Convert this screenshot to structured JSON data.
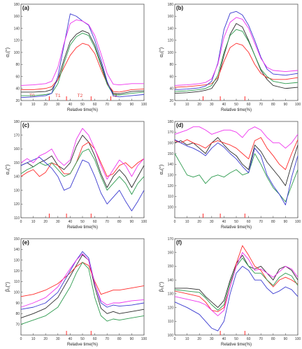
{
  "colors": {
    "black": "#2b2b2b",
    "red": "#ff2a2a",
    "green": "#2e9b4f",
    "blue": "#3a3ad0",
    "magenta": "#ee33ee",
    "axis": "#555555",
    "marker": "#ff2a2a"
  },
  "chart_data": [
    {
      "panel": "(a)",
      "type": "line",
      "xlabel": "Relative time(%)",
      "ylabel": "α₁(°)",
      "xlim": [
        0,
        100
      ],
      "ylim": [
        20,
        180
      ],
      "xticks": [
        0,
        10,
        20,
        30,
        40,
        50,
        60,
        70,
        80,
        90,
        100
      ],
      "yticks": [
        20,
        40,
        60,
        80,
        100,
        120,
        140,
        160,
        180
      ],
      "markers": [
        23,
        37,
        57,
        73
      ],
      "annotations": [
        {
          "text": "T0",
          "x": 9,
          "y": 28
        },
        {
          "text": "T1",
          "x": 30,
          "y": 28
        },
        {
          "text": "T2",
          "x": 48,
          "y": 28
        },
        {
          "text": "T3",
          "x": 76,
          "y": 28
        }
      ],
      "x": [
        0,
        10,
        20,
        25,
        30,
        35,
        40,
        45,
        50,
        55,
        60,
        65,
        70,
        75,
        80,
        90,
        100
      ],
      "series": [
        {
          "color": "black",
          "values": [
            34,
            34,
            35,
            38,
            55,
            88,
            118,
            130,
            136,
            132,
            112,
            82,
            50,
            32,
            31,
            35,
            36
          ]
        },
        {
          "color": "red",
          "values": [
            38,
            38,
            40,
            43,
            55,
            75,
            95,
            108,
            115,
            112,
            98,
            72,
            48,
            35,
            34,
            38,
            39
          ]
        },
        {
          "color": "green",
          "values": [
            28,
            28,
            30,
            32,
            48,
            82,
            112,
            126,
            132,
            128,
            108,
            78,
            47,
            30,
            29,
            32,
            34
          ]
        },
        {
          "color": "blue",
          "values": [
            25,
            26,
            28,
            32,
            60,
            112,
            164,
            160,
            152,
            145,
            120,
            88,
            52,
            28,
            26,
            28,
            30
          ]
        },
        {
          "color": "magenta",
          "values": [
            45,
            46,
            48,
            52,
            75,
            115,
            148,
            154,
            152,
            146,
            128,
            98,
            65,
            47,
            46,
            48,
            48
          ]
        }
      ]
    },
    {
      "panel": "(b)",
      "type": "line",
      "xlabel": "Relative time(%)",
      "ylabel": "α₂(°)",
      "xlim": [
        0,
        100
      ],
      "ylim": [
        20,
        180
      ],
      "xticks": [
        0,
        10,
        20,
        30,
        40,
        50,
        60,
        70,
        80,
        90,
        100
      ],
      "yticks": [
        20,
        40,
        60,
        80,
        100,
        120,
        140,
        160,
        180
      ],
      "markers": [
        23,
        37,
        57
      ],
      "annotations": [],
      "x": [
        0,
        10,
        20,
        25,
        30,
        35,
        40,
        45,
        50,
        55,
        60,
        65,
        70,
        75,
        80,
        90,
        100
      ],
      "series": [
        {
          "color": "black",
          "values": [
            32,
            33,
            35,
            37,
            40,
            55,
            95,
            130,
            148,
            142,
            120,
            95,
            70,
            55,
            45,
            40,
            42
          ]
        },
        {
          "color": "red",
          "values": [
            42,
            43,
            45,
            46,
            48,
            58,
            85,
            108,
            115,
            112,
            100,
            80,
            65,
            58,
            55,
            55,
            58
          ]
        },
        {
          "color": "green",
          "values": [
            35,
            36,
            38,
            40,
            45,
            62,
            100,
            128,
            138,
            135,
            118,
            95,
            72,
            60,
            52,
            48,
            50
          ]
        },
        {
          "color": "blue",
          "values": [
            38,
            39,
            41,
            44,
            52,
            82,
            138,
            165,
            168,
            162,
            145,
            120,
            92,
            72,
            64,
            62,
            65
          ]
        },
        {
          "color": "magenta",
          "values": [
            45,
            46,
            48,
            50,
            56,
            80,
            125,
            150,
            158,
            155,
            140,
            115,
            90,
            75,
            70,
            68,
            70
          ]
        }
      ]
    },
    {
      "panel": "(c)",
      "type": "line",
      "xlabel": "Relative time(%)",
      "ylabel": "α₃(°)",
      "xlim": [
        0,
        100
      ],
      "ylim": [
        110,
        180
      ],
      "xticks": [
        0,
        10,
        20,
        30,
        40,
        50,
        60,
        70,
        80,
        90,
        100
      ],
      "yticks": [
        110,
        120,
        130,
        140,
        150,
        160,
        170,
        180
      ],
      "markers": [
        23,
        37,
        57
      ],
      "annotations": [],
      "x": [
        0,
        5,
        10,
        15,
        20,
        25,
        30,
        35,
        40,
        45,
        50,
        55,
        60,
        65,
        70,
        75,
        80,
        85,
        90,
        95,
        100
      ],
      "series": [
        {
          "color": "black",
          "values": [
            148,
            150,
            147,
            150,
            152,
            155,
            148,
            145,
            150,
            162,
            170,
            165,
            155,
            142,
            132,
            140,
            145,
            140,
            132,
            140,
            148
          ]
        },
        {
          "color": "red",
          "values": [
            140,
            143,
            145,
            140,
            143,
            150,
            148,
            142,
            142,
            150,
            162,
            165,
            160,
            150,
            140,
            142,
            148,
            150,
            146,
            150,
            153
          ]
        },
        {
          "color": "green",
          "values": [
            142,
            145,
            147,
            150,
            148,
            150,
            145,
            140,
            142,
            150,
            158,
            160,
            152,
            140,
            130,
            135,
            140,
            135,
            127,
            135,
            140
          ]
        },
        {
          "color": "blue",
          "values": [
            148,
            150,
            152,
            154,
            150,
            146,
            140,
            130,
            132,
            142,
            152,
            150,
            140,
            128,
            120,
            125,
            130,
            122,
            115,
            122,
            130
          ]
        },
        {
          "color": "magenta",
          "values": [
            150,
            153,
            150,
            155,
            157,
            160,
            152,
            148,
            152,
            167,
            175,
            170,
            160,
            148,
            138,
            145,
            152,
            148,
            140,
            148,
            153
          ]
        }
      ]
    },
    {
      "panel": "(d)",
      "type": "line",
      "xlabel": "Relative time(%)",
      "ylabel": "α₄(°)",
      "xlim": [
        0,
        100
      ],
      "ylim": [
        90,
        180
      ],
      "xticks": [
        0,
        10,
        20,
        30,
        40,
        50,
        60,
        70,
        80,
        90,
        100
      ],
      "yticks": [
        100,
        110,
        120,
        130,
        140,
        150,
        160,
        170,
        180
      ],
      "markers": [
        23,
        37,
        57
      ],
      "annotations": [],
      "x": [
        0,
        5,
        10,
        15,
        20,
        25,
        30,
        35,
        40,
        45,
        50,
        55,
        60,
        65,
        70,
        75,
        80,
        85,
        90,
        95,
        100
      ],
      "series": [
        {
          "color": "black",
          "values": [
            160,
            162,
            158,
            160,
            155,
            150,
            160,
            165,
            158,
            152,
            148,
            140,
            135,
            158,
            152,
            142,
            135,
            128,
            120,
            140,
            158
          ]
        },
        {
          "color": "red",
          "values": [
            162,
            160,
            163,
            160,
            158,
            155,
            160,
            162,
            160,
            158,
            155,
            150,
            145,
            162,
            165,
            155,
            148,
            140,
            135,
            150,
            163
          ]
        },
        {
          "color": "green",
          "values": [
            150,
            140,
            130,
            128,
            130,
            122,
            128,
            130,
            128,
            132,
            135,
            130,
            132,
            150,
            140,
            128,
            118,
            112,
            105,
            120,
            135
          ]
        },
        {
          "color": "blue",
          "values": [
            163,
            160,
            157,
            155,
            152,
            148,
            155,
            160,
            156,
            150,
            145,
            138,
            132,
            155,
            148,
            130,
            120,
            112,
            102,
            128,
            148
          ]
        },
        {
          "color": "magenta",
          "values": [
            168,
            170,
            172,
            175,
            175,
            172,
            168,
            170,
            172,
            172,
            170,
            165,
            172,
            175,
            172,
            165,
            160,
            160,
            155,
            160,
            168
          ]
        }
      ]
    },
    {
      "panel": "(e)",
      "type": "line",
      "xlabel": "Relative time(%)",
      "ylabel": "β₁(°)",
      "xlim": [
        0,
        100
      ],
      "ylim": [
        60,
        150
      ],
      "xticks": [
        0,
        10,
        20,
        30,
        40,
        50,
        60,
        70,
        80,
        90,
        100
      ],
      "yticks": [
        70,
        80,
        90,
        100,
        110,
        120,
        130,
        140,
        150
      ],
      "markers": [
        37,
        57
      ],
      "annotations": [],
      "x": [
        0,
        10,
        20,
        30,
        40,
        45,
        50,
        55,
        60,
        65,
        70,
        75,
        80,
        90,
        100
      ],
      "series": [
        {
          "color": "black",
          "values": [
            76,
            80,
            85,
            95,
            115,
            125,
            135,
            130,
            105,
            85,
            80,
            82,
            80,
            82,
            84
          ]
        },
        {
          "color": "red",
          "values": [
            96,
            98,
            102,
            108,
            118,
            124,
            128,
            125,
            110,
            98,
            100,
            102,
            102,
            104,
            106
          ]
        },
        {
          "color": "green",
          "values": [
            70,
            74,
            78,
            86,
            105,
            118,
            128,
            122,
            95,
            78,
            73,
            75,
            74,
            76,
            78
          ]
        },
        {
          "color": "blue",
          "values": [
            84,
            86,
            90,
            100,
            120,
            130,
            138,
            132,
            108,
            90,
            86,
            88,
            87,
            88,
            90
          ]
        },
        {
          "color": "magenta",
          "values": [
            86,
            90,
            95,
            105,
            122,
            130,
            136,
            130,
            108,
            92,
            88,
            90,
            90,
            92,
            93
          ]
        }
      ]
    },
    {
      "panel": "(f)",
      "type": "line",
      "xlabel": "Relative time(%)",
      "ylabel": "β₂(°)",
      "xlim": [
        0,
        100
      ],
      "ylim": [
        100,
        170
      ],
      "xticks": [
        0,
        10,
        20,
        30,
        40,
        50,
        60,
        70,
        80,
        90,
        100
      ],
      "yticks": [
        100,
        110,
        120,
        130,
        140,
        150,
        160,
        170
      ],
      "markers": [
        37,
        57
      ],
      "annotations": [],
      "x": [
        0,
        10,
        20,
        25,
        30,
        35,
        40,
        45,
        50,
        55,
        60,
        65,
        70,
        75,
        80,
        85,
        90,
        95,
        100
      ],
      "series": [
        {
          "color": "black",
          "values": [
            134,
            134,
            133,
            128,
            124,
            120,
            125,
            140,
            152,
            158,
            150,
            148,
            150,
            145,
            140,
            148,
            150,
            147,
            140
          ]
        },
        {
          "color": "red",
          "values": [
            132,
            130,
            128,
            124,
            118,
            117,
            120,
            135,
            152,
            165,
            158,
            150,
            147,
            140,
            135,
            140,
            142,
            140,
            137
          ]
        },
        {
          "color": "green",
          "values": [
            133,
            132,
            131,
            127,
            122,
            118,
            122,
            138,
            150,
            156,
            150,
            145,
            145,
            140,
            136,
            142,
            145,
            143,
            136
          ]
        },
        {
          "color": "blue",
          "values": [
            124,
            120,
            115,
            110,
            105,
            103,
            110,
            130,
            145,
            150,
            147,
            140,
            140,
            134,
            130,
            132,
            135,
            133,
            128
          ]
        },
        {
          "color": "magenta",
          "values": [
            128,
            126,
            124,
            122,
            118,
            114,
            118,
            135,
            150,
            160,
            155,
            147,
            148,
            145,
            142,
            146,
            150,
            148,
            142
          ]
        }
      ]
    }
  ]
}
